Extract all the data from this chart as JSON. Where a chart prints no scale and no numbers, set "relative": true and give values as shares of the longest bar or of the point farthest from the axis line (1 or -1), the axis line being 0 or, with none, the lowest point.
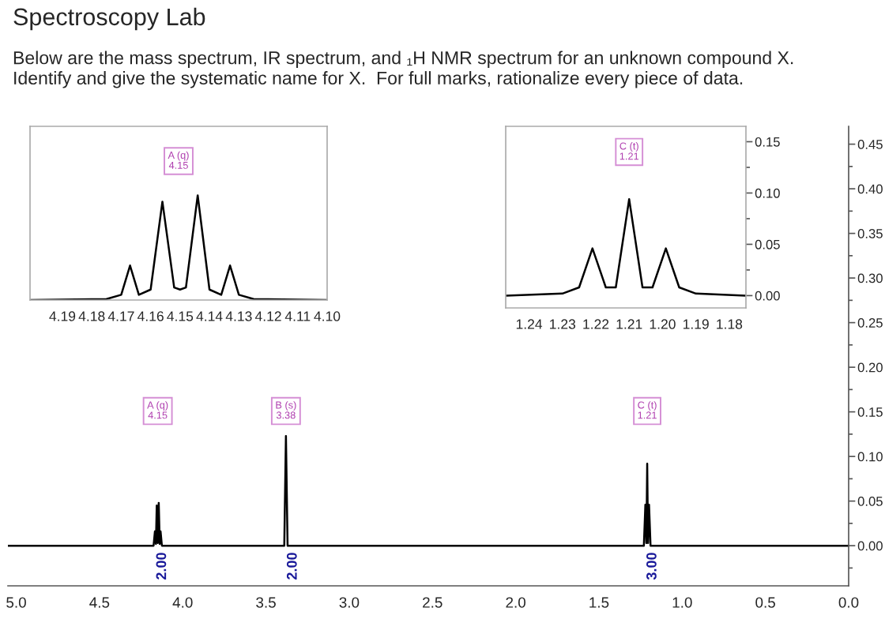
{
  "chart_data": [
    {
      "type": "line",
      "title": "Spectroscopy Lab",
      "subtitle": "Below are the mass spectrum, IR spectrum, and ₁H NMR spectrum for an unknown compound X.\nIdentify and give the systematic name for X.  For full marks, rationalize every piece of data.",
      "series": [
        {
          "color": "#000000",
          "x": [
            5.05,
            4.175,
            4.167,
            4.161,
            4.156,
            4.15,
            4.144,
            4.138,
            4.133,
            4.125,
            3.39,
            3.38,
            3.37,
            1.23,
            1.221,
            1.215,
            1.21,
            1.205,
            1.199,
            1.19,
            0
          ],
          "values": [
            0,
            0,
            0.016,
            0.002,
            0.045,
            0.003,
            0.048,
            0.002,
            0.016,
            0,
            0,
            0.123,
            0,
            0,
            0.046,
            0.003,
            0.092,
            0.003,
            0.046,
            0,
            0
          ]
        }
      ],
      "xlim": [
        5.05,
        0
      ],
      "ylim": [
        -0.045,
        0.47
      ],
      "xticks": [
        {
          "value": 5,
          "label": "5.0"
        },
        4.5,
        {
          "value": 4,
          "label": "4.0"
        },
        3.5,
        {
          "value": 3,
          "label": "3.0"
        },
        2.5,
        {
          "value": 2,
          "label": "2.0"
        },
        1.5,
        {
          "value": 1,
          "label": "1.0"
        },
        0.5,
        {
          "value": 0,
          "label": "0.0"
        }
      ],
      "yticks": [
        {
          "value": 0,
          "label": "0.00"
        },
        {
          "value": 0.05,
          "label": "0.05"
        },
        {
          "value": 0.1,
          "label": "0.10"
        },
        {
          "value": 0.15,
          "label": "0.15"
        },
        {
          "value": 0.2,
          "label": "0.20"
        },
        {
          "value": 0.25,
          "label": "0.25"
        },
        {
          "value": 0.3,
          "label": "0.30"
        },
        {
          "value": 0.35,
          "label": "0.35"
        },
        {
          "value": 0.4,
          "label": "0.40"
        },
        {
          "value": 0.45,
          "label": "0.45"
        }
      ],
      "annotations": [
        {
          "text": "A (q)\n4.15",
          "x": 4.15,
          "y": 0.151
        },
        {
          "text": "B (s)\n3.38",
          "x": 3.38,
          "y": 0.151
        },
        {
          "text": "C (t)\n1.21",
          "x": 1.21,
          "y": 0.151
        },
        {
          "text": "2.00",
          "x": 4.175,
          "y": 0
        },
        {
          "text": "2.00",
          "x": 3.39,
          "y": 0
        },
        {
          "text": "3.00",
          "x": 1.23,
          "y": 0
        }
      ],
      "grid": false,
      "legend": false
    },
    {
      "type": "line",
      "relative": true,
      "tick_labels": "x",
      "series": [
        {
          "color": "#000000",
          "x": [
            4.201,
            4.175,
            4.17,
            4.167,
            4.164,
            4.16,
            4.156,
            4.152,
            4.15,
            4.148,
            4.144,
            4.14,
            4.136,
            4.133,
            4.13,
            4.125,
            4.1
          ],
          "values": [
            0,
            0.01,
            0.05,
            0.33,
            0.05,
            0.1,
            0.94,
            0.12,
            0.1,
            0.12,
            1.0,
            0.1,
            0.05,
            0.33,
            0.05,
            0.01,
            0
          ]
        }
      ],
      "xlim": [
        4.201,
        4.1
      ],
      "xticks": [
        4.19,
        4.18,
        4.17,
        4.16,
        4.15,
        4.14,
        4.13,
        4.12,
        4.11,
        {
          "value": 4.1,
          "label": "4.10"
        }
      ],
      "annotations": [
        "A (q)\n4.15"
      ],
      "grid": false,
      "legend": false
    },
    {
      "type": "line",
      "series": [
        {
          "color": "#000000",
          "x": [
            1.247,
            1.23,
            1.225,
            1.221,
            1.217,
            1.214,
            1.21,
            1.206,
            1.203,
            1.199,
            1.195,
            1.19,
            1.175
          ],
          "values": [
            0,
            0.002,
            0.008,
            0.046,
            0.008,
            0.008,
            0.094,
            0.008,
            0.008,
            0.046,
            0.008,
            0.002,
            0
          ]
        }
      ],
      "xlim": [
        1.247,
        1.175
      ],
      "ylim": [
        -0.012,
        0.165
      ],
      "xticks": [
        1.24,
        1.23,
        1.22,
        1.21,
        {
          "value": 1.2,
          "label": "1.20"
        },
        1.19,
        1.18
      ],
      "yticks": [
        {
          "value": 0,
          "label": "0.00"
        },
        {
          "value": 0.05,
          "label": "0.05"
        },
        {
          "value": 0.1,
          "label": "0.10"
        },
        {
          "value": 0.15,
          "label": "0.15"
        }
      ],
      "annotations": [
        {
          "text": "C (t)\n1.21",
          "x": 1.21,
          "y": 0.14
        }
      ],
      "grid": false,
      "legend": false
    }
  ]
}
